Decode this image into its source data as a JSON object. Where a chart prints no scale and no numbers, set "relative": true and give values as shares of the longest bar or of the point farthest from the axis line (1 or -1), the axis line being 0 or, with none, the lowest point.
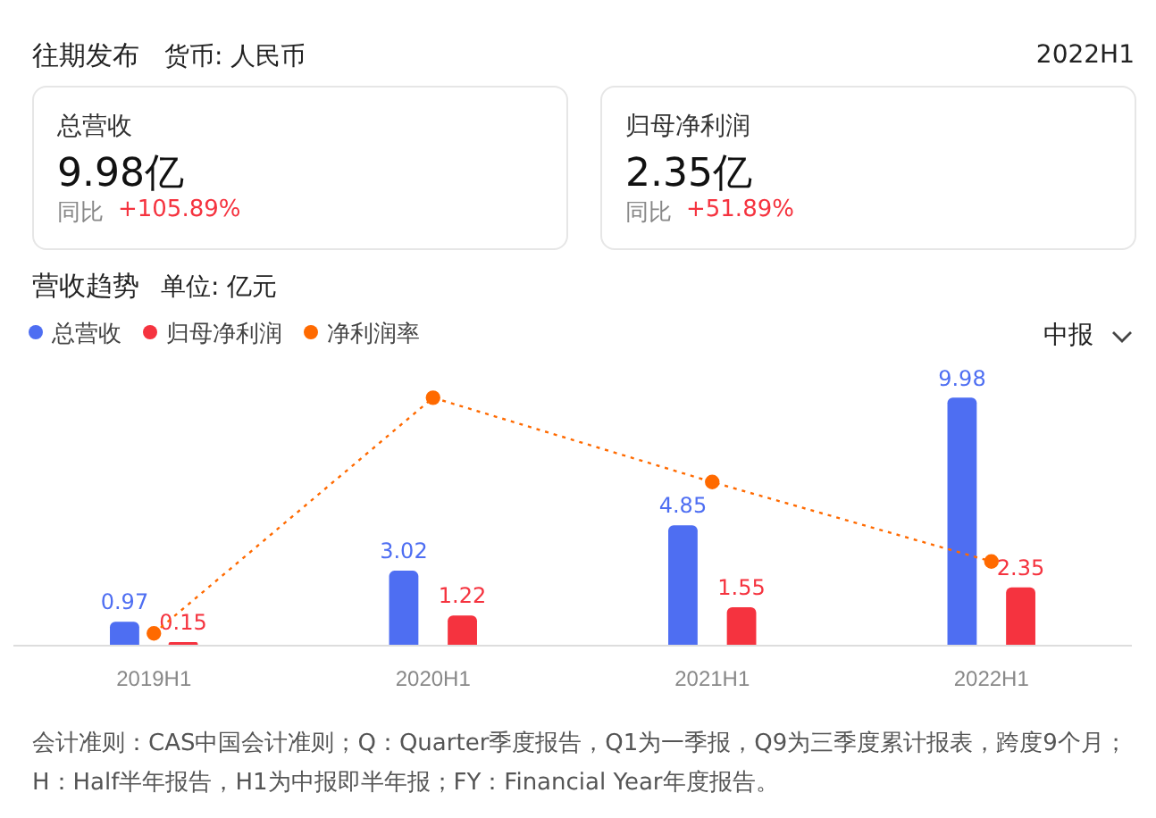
{
  "chart_data": [
    {
      "type": "bar",
      "title": "营收趋势",
      "subtitle": "单位: 亿元",
      "annotations": [
        "往期发布",
        "货币: 人民币",
        "2022H1",
        "总营收",
        "9.98亿",
        "同比",
        "+105.89%",
        "归母净利润",
        "2.35亿",
        "同比",
        "+51.89%",
        "中报",
        "会计准则：CAS中国会计准则；Q：Quarter季度报告，Q1为一季报，Q9为三季度累计报表，跨度9个月；H：Half半年报告，H1为中报即半年报；FY：Financial Year年度报告。"
      ],
      "categories": [
        "2019H1",
        "2020H1",
        "2021H1",
        "2022H1"
      ],
      "series": [
        {
          "name": "总营收",
          "color": "#4e6ef2",
          "values": [
            0.97,
            3.02,
            4.85,
            9.98
          ],
          "value_labels": [
            "0.97",
            "3.02",
            "4.85",
            "9.98"
          ]
        },
        {
          "name": "归母净利润",
          "color": "#f5333f",
          "values": [
            0.15,
            1.22,
            1.55,
            2.35
          ],
          "value_labels": [
            "0.15",
            "1.22",
            "1.55",
            "2.35"
          ]
        }
      ],
      "grid": false,
      "legend": "top left",
      "tick_labels": "x"
    },
    {
      "type": "line",
      "categories": [
        null,
        null,
        null,
        null
      ],
      "series": [
        {
          "name": "净利润率",
          "color": "#ff6a00",
          "values": [
            0.05,
            1,
            0.66,
            0.34
          ],
          "marker": "circle",
          "line_style": "dotted"
        }
      ],
      "relative": true,
      "grid": false,
      "tick_labels": false
    }
  ]
}
